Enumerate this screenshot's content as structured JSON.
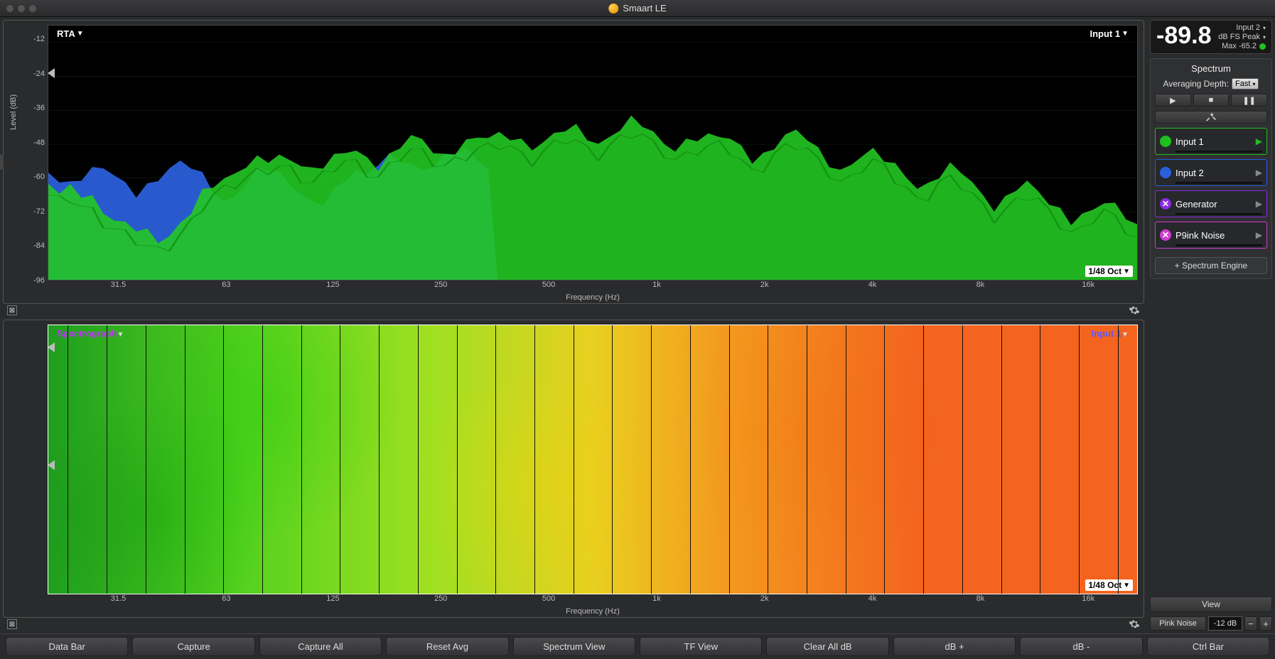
{
  "window": {
    "title": "Smaart LE"
  },
  "meter": {
    "value": "-89.8",
    "input": "Input 2",
    "mode": "dB FS Peak",
    "max": "Max -65.2"
  },
  "spectrum_panel": {
    "title": "Spectrum",
    "avg_label": "Averaging Depth:",
    "avg_value": "Fast",
    "sources": [
      {
        "label": "Input 1",
        "color": "#1fbf1f",
        "style": "dot",
        "border": "green",
        "active": true
      },
      {
        "label": "Input 2",
        "color": "#2a5fe0",
        "style": "dot",
        "border": "blue",
        "active": false
      },
      {
        "label": "Generator",
        "color": "#8a2be2",
        "style": "x",
        "border": "purple",
        "active": false
      },
      {
        "label": "P9ink Noise",
        "color": "#d23ccf",
        "style": "x",
        "border": "magenta",
        "active": false
      }
    ],
    "add_label": "+ Spectrum Engine"
  },
  "view_button": "View",
  "noise": {
    "type": "Pink Noise",
    "value": "-12 dB"
  },
  "rta": {
    "title": "RTA",
    "input_label": "Input 1",
    "oct_label": "1/48 Oct",
    "y_label": "Level (dB)",
    "x_label": "Frequency (Hz)",
    "y_ticks": [
      "-12",
      "-24",
      "-36",
      "-48",
      "-60",
      "-72",
      "-84",
      "-96"
    ],
    "ylim": [
      -96,
      -6
    ],
    "x_ticks": [
      "31.5",
      "63",
      "125",
      "250",
      "500",
      "1k",
      "2k",
      "4k",
      "8k",
      "16k"
    ],
    "x_tick_freqs": [
      31.5,
      63,
      125,
      250,
      500,
      1000,
      2000,
      4000,
      8000,
      16000
    ],
    "x_range": [
      20,
      22000
    ],
    "grid_color": "#193a19",
    "colors": {
      "series1": "#23c723",
      "series1_line": "#0f8a0f",
      "series2": "#2b5fd8"
    },
    "series2_freq_cut": 120,
    "series1_values_db": [
      -62,
      -64,
      -63,
      -66,
      -68,
      -72,
      -74,
      -76,
      -78,
      -80,
      -82,
      -80,
      -76,
      -72,
      -66,
      -62,
      -60,
      -58,
      -56,
      -54,
      -53,
      -52,
      -53,
      -56,
      -58,
      -55,
      -52,
      -50,
      -51,
      -54,
      -56,
      -52,
      -48,
      -46,
      -47,
      -50,
      -52,
      -50,
      -48,
      -46,
      -45,
      -44,
      -45,
      -48,
      -50,
      -47,
      -44,
      -42,
      -43,
      -46,
      -48,
      -45,
      -42,
      -40,
      -41,
      -44,
      -47,
      -50,
      -48,
      -46,
      -45,
      -44,
      -46,
      -50,
      -54,
      -52,
      -48,
      -45,
      -44,
      -46,
      -50,
      -54,
      -58,
      -56,
      -52,
      -50,
      -52,
      -56,
      -60,
      -64,
      -62,
      -58,
      -56,
      -58,
      -62,
      -66,
      -70,
      -68,
      -64,
      -62,
      -64,
      -68,
      -72,
      -76,
      -74,
      -70,
      -68,
      -70,
      -74,
      -78
    ],
    "series2_values_db": [
      -58,
      -60,
      -62,
      -60,
      -58,
      -56,
      -58,
      -62,
      -66,
      -64,
      -60,
      -56,
      -54,
      -56,
      -60,
      -64,
      -68,
      -66,
      -62,
      -58,
      -56,
      -58,
      -62,
      -66,
      -70,
      -68,
      -64,
      -60,
      -58,
      -60,
      -54,
      -52,
      -53,
      -56,
      -58,
      -55,
      -52,
      -50,
      -51,
      -54,
      -56,
      -52,
      -48,
      -46,
      -47,
      -50,
      -52,
      -50,
      -48,
      -46,
      -45,
      -44,
      -45,
      -48,
      -50,
      -47,
      -44,
      -42,
      -43,
      -46,
      -48,
      -45,
      -42,
      -40,
      -41,
      -44,
      -47,
      -50,
      -48,
      -46,
      -45,
      -44,
      -46,
      -50,
      -54,
      -52,
      -48,
      -45,
      -44,
      -46,
      -50,
      -54,
      -58,
      -56,
      -52,
      -50,
      -52,
      -56,
      -60,
      -64,
      -62,
      -58,
      -56,
      -58,
      -62,
      -66,
      -70,
      -68,
      -64,
      -62
    ]
  },
  "spectro": {
    "title": "Spectrograph",
    "title_color": "#c030ff",
    "input_label": "Input 1",
    "input_color": "#5a5aff",
    "oct_label": "1/48 Oct",
    "x_label": "Frequency (Hz)",
    "x_ticks": [
      "31.5",
      "63",
      "125",
      "250",
      "500",
      "1k",
      "2k",
      "4k",
      "8k",
      "16k"
    ],
    "gradient_stops": [
      {
        "pct": 0,
        "color": "#1e9e1e"
      },
      {
        "pct": 18,
        "color": "#55d21e"
      },
      {
        "pct": 35,
        "color": "#9ee020"
      },
      {
        "pct": 50,
        "color": "#e8d020"
      },
      {
        "pct": 62,
        "color": "#f49a1e"
      },
      {
        "pct": 80,
        "color": "#f4641e"
      },
      {
        "pct": 100,
        "color": "#f4641e"
      }
    ],
    "num_vlines": 28
  },
  "bottom_buttons": [
    "Data Bar",
    "Capture",
    "Capture All",
    "Reset Avg",
    "Spectrum View",
    "TF View",
    "Clear All dB",
    "dB +",
    "dB -",
    "Ctrl Bar"
  ]
}
